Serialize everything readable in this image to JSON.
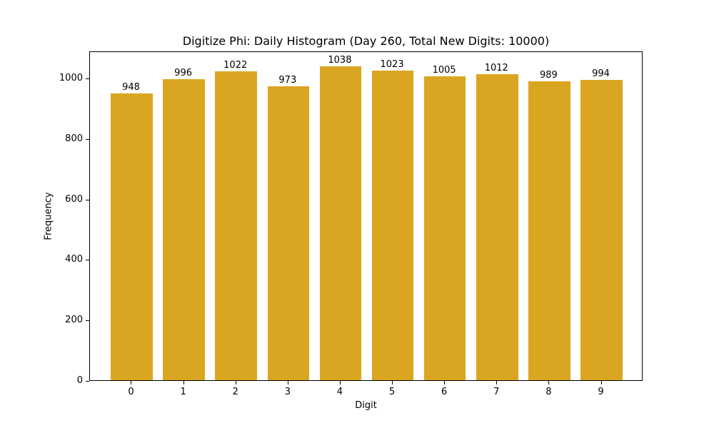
{
  "chart_data": {
    "type": "bar",
    "title": "Digitize Phi: Daily Histogram (Day 260, Total New Digits: 10000)",
    "xlabel": "Digit",
    "ylabel": "Frequency",
    "categories": [
      "0",
      "1",
      "2",
      "3",
      "4",
      "5",
      "6",
      "7",
      "8",
      "9"
    ],
    "values": [
      948,
      996,
      1022,
      973,
      1038,
      1023,
      1005,
      1012,
      989,
      994
    ],
    "bar_color": "#DAA520",
    "ylim": [
      0,
      1090
    ],
    "yticks": [
      0,
      200,
      400,
      600,
      800,
      1000
    ],
    "grid": false,
    "legend": null
  }
}
